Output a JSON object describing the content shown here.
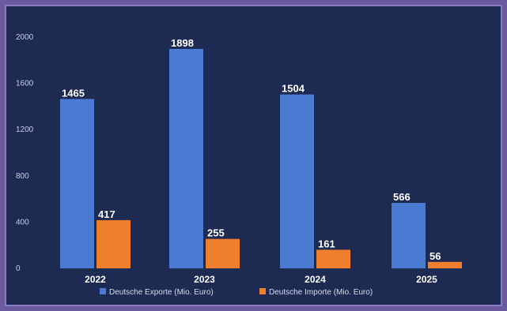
{
  "chart_data": {
    "type": "bar",
    "categories": [
      "2022",
      "2023",
      "2024",
      "2025"
    ],
    "series": [
      {
        "name": "Deutsche Exporte (Mio. Euro)",
        "values": [
          1465,
          1898,
          1504,
          566
        ],
        "color": "#4a7bd3"
      },
      {
        "name": "Deutsche Importe (Mio. Euro)",
        "values": [
          417,
          255,
          161,
          56
        ],
        "color": "#ef7f2d"
      }
    ],
    "y_ticks": [
      0,
      400,
      800,
      1200,
      1600,
      2000
    ],
    "ylim": [
      0,
      2000
    ],
    "grid": false,
    "legend_position": "bottom",
    "background": "#1d2a52",
    "border": "#8b7bc4"
  }
}
